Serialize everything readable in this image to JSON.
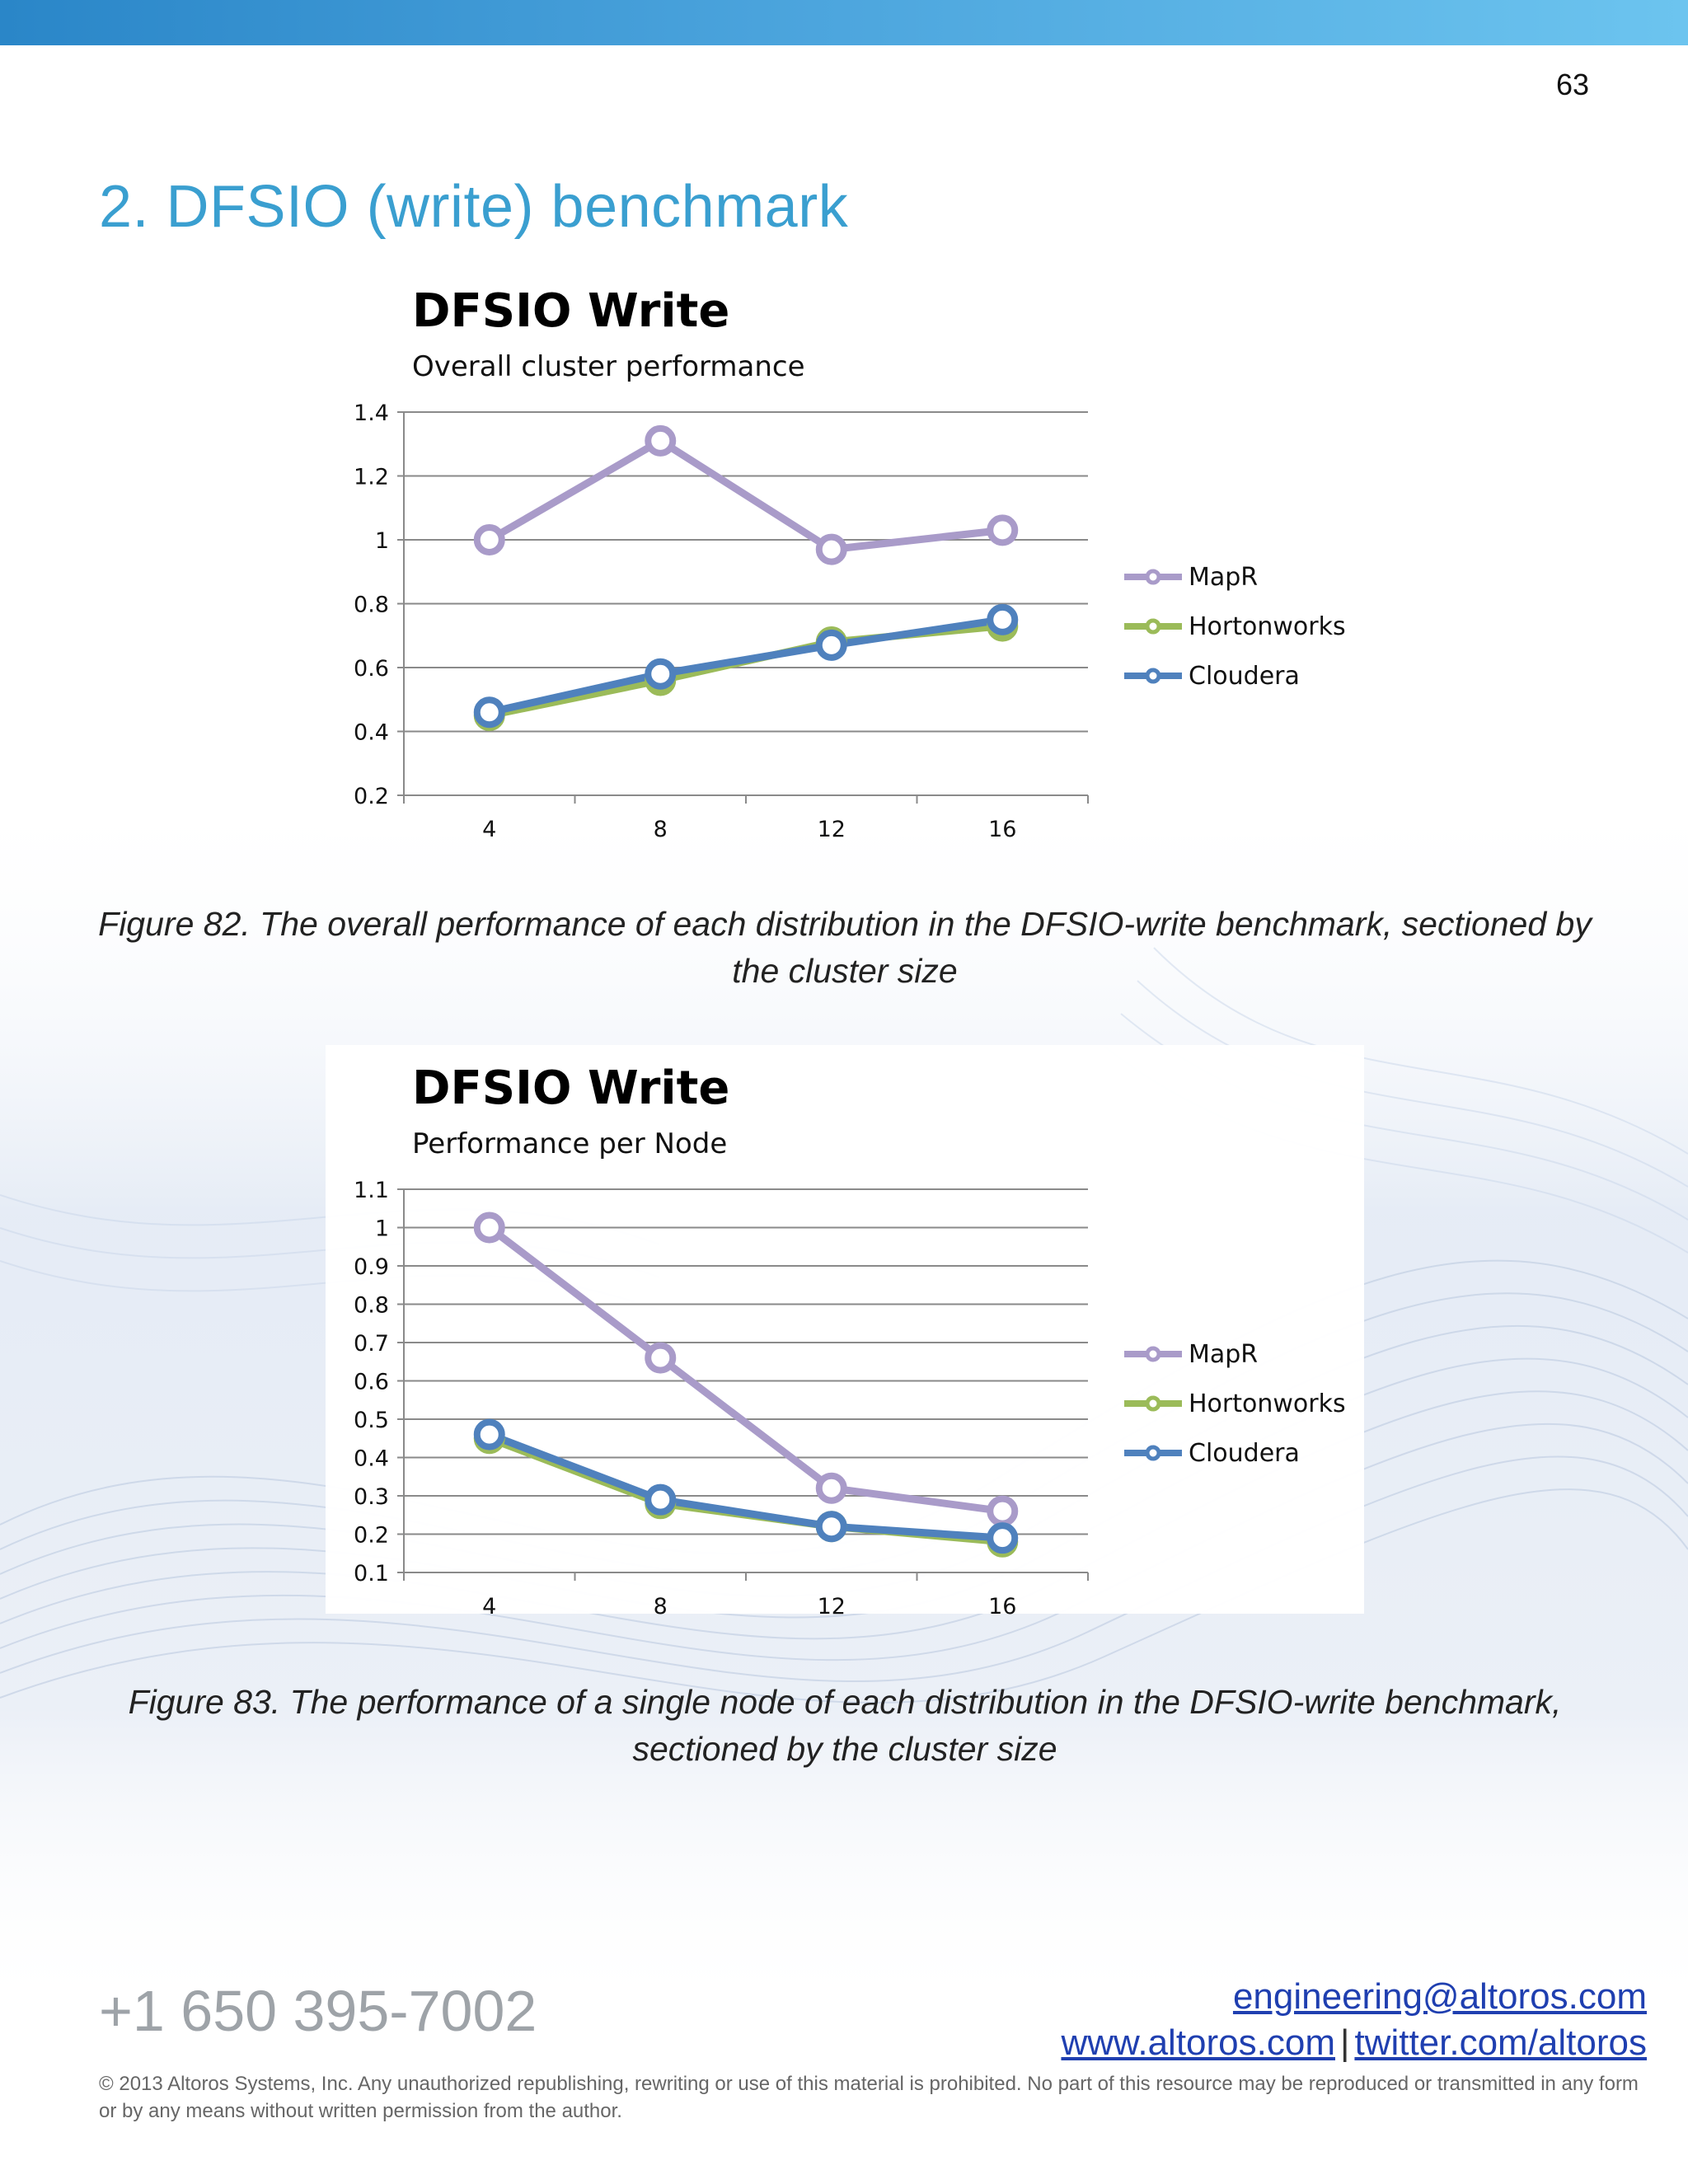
{
  "page": {
    "number": "63"
  },
  "section": {
    "title": "2. DFSIO (write) benchmark"
  },
  "figures": [
    {
      "caption": "Figure 82. The overall performance of each distribution in the DFSIO-write benchmark, sectioned by the cluster size",
      "legend": [
        {
          "name": "MapR",
          "color": "#a99bc9"
        },
        {
          "name": "Hortonworks",
          "color": "#9bbb59"
        },
        {
          "name": "Cloudera",
          "color": "#4f81bd"
        }
      ]
    },
    {
      "caption": "Figure 83. The performance of a single node of each distribution in the DFSIO-write benchmark, sectioned by the cluster size",
      "legend": [
        {
          "name": "MapR",
          "color": "#a99bc9"
        },
        {
          "name": "Hortonworks",
          "color": "#9bbb59"
        },
        {
          "name": "Cloudera",
          "color": "#4f81bd"
        }
      ]
    }
  ],
  "chart_data": [
    {
      "type": "line",
      "title": "DFSIO Write",
      "subtitle": "Overall cluster performance",
      "categories": [
        "4",
        "8",
        "12",
        "16"
      ],
      "ylim": [
        0.2,
        1.4
      ],
      "yticks": [
        "0.2",
        "0.4",
        "0.6",
        "0.8",
        "1",
        "1.2",
        "1.4"
      ],
      "grid": true,
      "legend_position": "right",
      "series": [
        {
          "name": "MapR",
          "color": "#a99bc9",
          "values": [
            1.0,
            1.31,
            0.97,
            1.03
          ]
        },
        {
          "name": "Hortonworks",
          "color": "#9bbb59",
          "values": [
            0.45,
            0.56,
            0.68,
            0.73
          ]
        },
        {
          "name": "Cloudera",
          "color": "#4f81bd",
          "values": [
            0.46,
            0.58,
            0.67,
            0.75
          ]
        }
      ]
    },
    {
      "type": "line",
      "title": "DFSIO Write",
      "subtitle": "Performance per Node",
      "categories": [
        "4",
        "8",
        "12",
        "16"
      ],
      "ylim": [
        0.1,
        1.1
      ],
      "yticks": [
        "0.1",
        "0.2",
        "0.3",
        "0.4",
        "0.5",
        "0.6",
        "0.7",
        "0.8",
        "0.9",
        "1",
        "1.1"
      ],
      "grid": true,
      "legend_position": "right",
      "series": [
        {
          "name": "MapR",
          "color": "#a99bc9",
          "values": [
            1.0,
            0.66,
            0.32,
            0.26
          ]
        },
        {
          "name": "Hortonworks",
          "color": "#9bbb59",
          "values": [
            0.45,
            0.28,
            0.22,
            0.18
          ]
        },
        {
          "name": "Cloudera",
          "color": "#4f81bd",
          "values": [
            0.46,
            0.29,
            0.22,
            0.19
          ]
        }
      ]
    }
  ],
  "footer": {
    "phone": "+1 650 395-7002",
    "email": "engineering@altoros.com",
    "website": "www.altoros.com",
    "separator": "|",
    "twitter": "twitter.com/altoros",
    "copyright": "© 2013 Altoros Systems, Inc. Any unauthorized republishing, rewriting or use of this material is prohibited. No part of this resource may be reproduced or transmitted in any form or by any means without written permission from the author."
  }
}
